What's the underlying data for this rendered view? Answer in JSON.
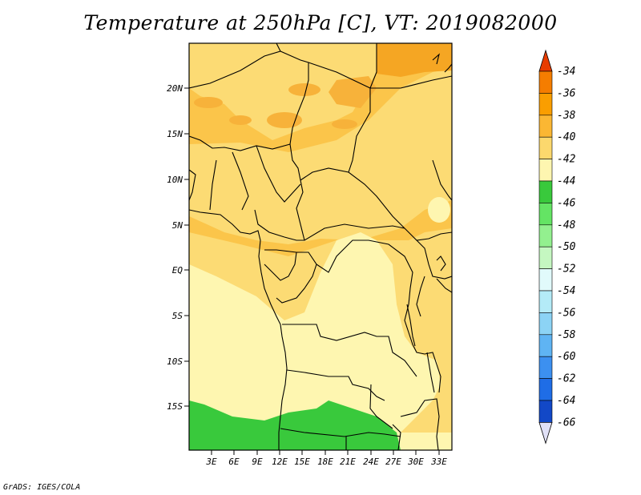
{
  "title": "Temperature at 250hPa [C], VT: 2019082000",
  "credit": "GrADS: IGES/COLA",
  "map": {
    "lon_range": [
      0,
      34.5
    ],
    "lat_range": [
      -19.5,
      25
    ],
    "lon_ticks": [
      "3E",
      "6E",
      "9E",
      "12E",
      "15E",
      "18E",
      "21E",
      "24E",
      "27E",
      "30E",
      "33E"
    ],
    "lat_ticks": [
      "20N",
      "15N",
      "10N",
      "5N",
      "EQ",
      "5S",
      "10S",
      "15S"
    ]
  },
  "colorbar": {
    "labels": [
      "-34",
      "-36",
      "-38",
      "-40",
      "-42",
      "-44",
      "-46",
      "-48",
      "-50",
      "-52",
      "-54",
      "-56",
      "-58",
      "-60",
      "-62",
      "-64",
      "-66"
    ],
    "colors": [
      "#f05a00",
      "#f57d00",
      "#fa9e00",
      "#fbb733",
      "#fcd86d",
      "#fef6b0",
      "#39c93c",
      "#64e464",
      "#93f08f",
      "#c5f7c1",
      "#e1fafb",
      "#b4ebf7",
      "#8cd3f5",
      "#5fb4f3",
      "#3c90f0",
      "#1f6de6",
      "#1248c7",
      "#0a1e96",
      "#e0e0f6"
    ],
    "top_arrow_color": "#e83c00",
    "bottom_arrow_color": "#e0e0f6"
  },
  "field_colors": {
    "band_36_38": "#f5a623",
    "band_38_40": "#fbc54a",
    "band_40_42": "#fcdb74",
    "band_42_44": "#fef6b0",
    "band_44_46": "#39c93c"
  }
}
